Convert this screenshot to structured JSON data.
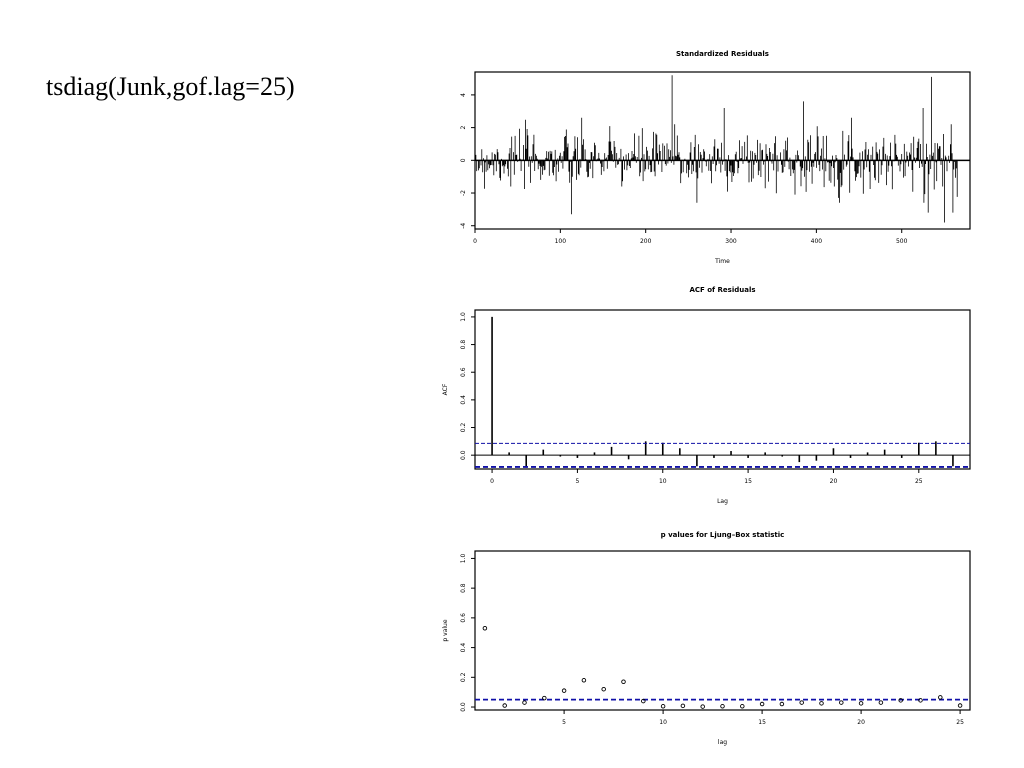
{
  "slide": {
    "command": "tsdiag(Junk,gof.lag=25)"
  },
  "chart_data": [
    {
      "type": "line",
      "title": "Standardized Residuals",
      "xlabel": "Time",
      "ylabel": "",
      "xlim": [
        0,
        580
      ],
      "ylim": [
        -4.2,
        5.4
      ],
      "x_ticks": [
        0,
        100,
        200,
        300,
        400,
        500
      ],
      "y_ticks": [
        -4,
        -2,
        0,
        2,
        4
      ],
      "n": 566,
      "reference_line": 0,
      "notable_points": [
        {
          "x": 113,
          "y": -3.3
        },
        {
          "x": 231,
          "y": 5.2
        },
        {
          "x": 234,
          "y": 2.2
        },
        {
          "x": 260,
          "y": -2.6
        },
        {
          "x": 292,
          "y": 3.2
        },
        {
          "x": 385,
          "y": 3.6
        },
        {
          "x": 525,
          "y": 3.2
        },
        {
          "x": 531,
          "y": -3.2
        },
        {
          "x": 535,
          "y": 5.1
        },
        {
          "x": 550,
          "y": -3.8
        },
        {
          "x": 558,
          "y": 2.2
        },
        {
          "x": 560,
          "y": -3.2
        }
      ]
    },
    {
      "type": "bar",
      "title": "ACF of Residuals",
      "xlabel": "Lag",
      "ylabel": "ACF",
      "xlim": [
        -1,
        28
      ],
      "ylim": [
        -0.1,
        1.05
      ],
      "x_ticks": [
        0,
        5,
        10,
        15,
        20,
        25
      ],
      "y_ticks": [
        0.0,
        0.2,
        0.4,
        0.6,
        0.8,
        1.0
      ],
      "lags": [
        0,
        1,
        2,
        3,
        4,
        5,
        6,
        7,
        8,
        9,
        10,
        11,
        12,
        13,
        14,
        15,
        16,
        17,
        18,
        19,
        20,
        21,
        22,
        23,
        24,
        25,
        26,
        27
      ],
      "values": [
        1.0,
        0.02,
        -0.09,
        0.04,
        -0.01,
        -0.02,
        0.02,
        0.06,
        -0.03,
        0.1,
        0.09,
        0.05,
        -0.08,
        -0.02,
        0.03,
        -0.02,
        0.02,
        -0.01,
        -0.05,
        -0.04,
        0.05,
        -0.02,
        0.02,
        0.04,
        -0.02,
        0.09,
        0.1,
        -0.08
      ],
      "conf_band": 0.085
    },
    {
      "type": "scatter",
      "title": "p values for Ljung–Box statistic",
      "xlabel": "lag",
      "ylabel": "p value",
      "xlim": [
        0.5,
        25.5
      ],
      "ylim": [
        -0.02,
        1.05
      ],
      "x_ticks": [
        5,
        10,
        15,
        20,
        25
      ],
      "y_ticks": [
        0.0,
        0.2,
        0.4,
        0.6,
        0.8,
        1.0
      ],
      "x": [
        1,
        2,
        3,
        4,
        5,
        6,
        7,
        8,
        9,
        10,
        11,
        12,
        13,
        14,
        15,
        16,
        17,
        18,
        19,
        20,
        21,
        22,
        23,
        24,
        25
      ],
      "y": [
        0.53,
        0.01,
        0.03,
        0.06,
        0.11,
        0.18,
        0.12,
        0.17,
        0.04,
        0.005,
        0.008,
        0.003,
        0.005,
        0.005,
        0.02,
        0.02,
        0.03,
        0.025,
        0.03,
        0.025,
        0.03,
        0.045,
        0.045,
        0.065,
        0.01
      ],
      "reference_line": 0.05
    }
  ]
}
